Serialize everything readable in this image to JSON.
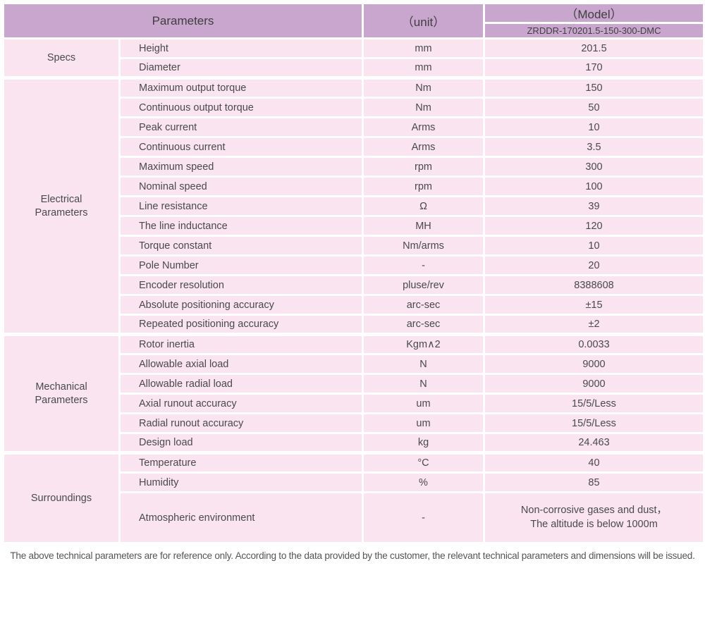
{
  "header": {
    "parameters_label": "Parameters",
    "unit_label": "（unit）",
    "model_label": "（Model）",
    "model_value": "ZRDDR-170201.5-150-300-DMC"
  },
  "sections": [
    {
      "label": "Specs",
      "rows": [
        {
          "param": "Height",
          "unit": "mm",
          "value": "201.5"
        },
        {
          "param": "Diameter",
          "unit": "mm",
          "value": "170"
        }
      ]
    },
    {
      "label": "Electrical Parameters",
      "rows": [
        {
          "param": "Maximum output torque",
          "unit": "Nm",
          "value": "150"
        },
        {
          "param": "Continuous output torque",
          "unit": "Nm",
          "value": "50"
        },
        {
          "param": "Peak current",
          "unit": "Arms",
          "value": "10"
        },
        {
          "param": "Continuous current",
          "unit": "Arms",
          "value": "3.5"
        },
        {
          "param": "Maximum speed",
          "unit": "rpm",
          "value": "300"
        },
        {
          "param": "Nominal speed",
          "unit": "rpm",
          "value": "100"
        },
        {
          "param": "Line resistance",
          "unit": "Ω",
          "value": "39"
        },
        {
          "param": "The line inductance",
          "unit": "MH",
          "value": "120"
        },
        {
          "param": "Torque constant",
          "unit": "Nm/arms",
          "value": "10"
        },
        {
          "param": "Pole Number",
          "unit": "-",
          "value": "20"
        },
        {
          "param": "Encoder resolution",
          "unit": "pluse/rev",
          "value": "8388608"
        },
        {
          "param": "Absolute positioning accuracy",
          "unit": "arc-sec",
          "value": "±15"
        },
        {
          "param": "Repeated positioning accuracy",
          "unit": "arc-sec",
          "value": "±2"
        }
      ]
    },
    {
      "label": "Mechanical Parameters",
      "rows": [
        {
          "param": "Rotor inertia",
          "unit": "Kgm∧2",
          "value": "0.0033"
        },
        {
          "param": "Allowable axial load",
          "unit": "N",
          "value": "9000"
        },
        {
          "param": "Allowable radial load",
          "unit": "N",
          "value": "9000"
        },
        {
          "param": "Axial runout accuracy",
          "unit": "um",
          "value": "15/5/Less"
        },
        {
          "param": "Radial runout accuracy",
          "unit": "um",
          "value": "15/5/Less"
        },
        {
          "param": "Design load",
          "unit": "kg",
          "value": "24.463"
        }
      ]
    },
    {
      "label": "Surroundings",
      "rows": [
        {
          "param": "Temperature",
          "unit": "°C",
          "value": "40"
        },
        {
          "param": "Humidity",
          "unit": "%",
          "value": "85"
        },
        {
          "param": "Atmospheric environment",
          "unit": "-",
          "value_lines": [
            "Non-corrosive gases and dust，",
            "The altitude is below 1000m"
          ]
        }
      ]
    }
  ],
  "footnote": "The above technical parameters are for reference only. According to the data provided by the customer, the relevant technical parameters and dimensions will be issued.",
  "colors": {
    "header_bg": "#c9a6ce",
    "row_bg": "#f9e4ef",
    "divider": "#ffffff",
    "text": "#4a4a4a"
  }
}
